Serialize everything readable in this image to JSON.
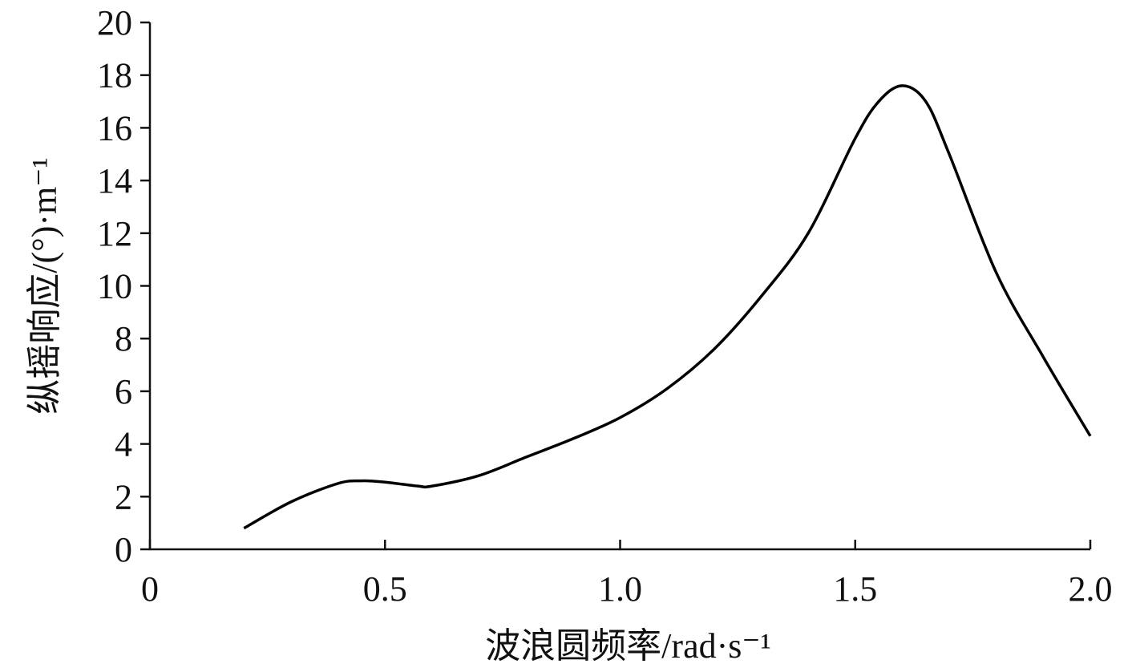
{
  "chart_data": {
    "type": "line",
    "xlabel": "波浪圆频率/rad·s⁻¹",
    "ylabel": "纵摇响应/(°)·m⁻¹",
    "x": [
      0.2,
      0.3,
      0.4,
      0.45,
      0.5,
      0.57,
      0.6,
      0.7,
      0.8,
      0.9,
      1.0,
      1.1,
      1.2,
      1.3,
      1.4,
      1.5,
      1.55,
      1.6,
      1.65,
      1.7,
      1.8,
      1.9,
      2.0
    ],
    "series": [
      {
        "color": "#000000",
        "values": [
          0.8,
          1.8,
          2.5,
          2.6,
          2.55,
          2.4,
          2.4,
          2.8,
          3.5,
          4.2,
          5.0,
          6.1,
          7.6,
          9.6,
          12.0,
          15.6,
          17.0,
          17.6,
          17.0,
          15.0,
          10.5,
          7.3,
          4.3
        ]
      }
    ],
    "xlim": [
      0,
      2
    ],
    "ylim": [
      0,
      20
    ],
    "xticks": [
      0,
      0.5,
      {
        "value": 1,
        "label": "1.0"
      },
      1.5,
      {
        "value": 2,
        "label": "2.0"
      }
    ],
    "yticks": [
      0,
      2,
      4,
      6,
      8,
      10,
      12,
      14,
      16,
      18,
      20
    ]
  }
}
